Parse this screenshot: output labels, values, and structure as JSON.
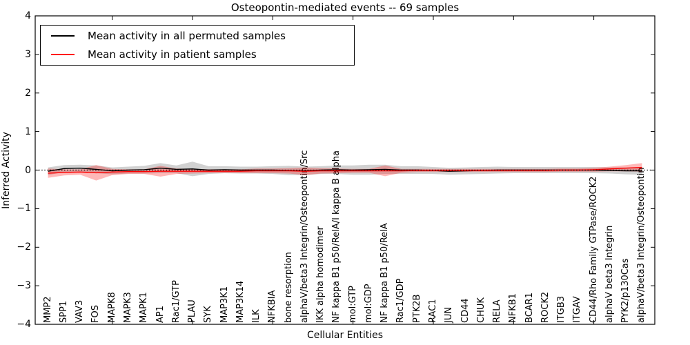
{
  "chart_data": {
    "type": "line",
    "title": "Osteopontin-mediated events -- 69 samples",
    "xlabel": "Cellular Entities",
    "ylabel": "Inferred Activity",
    "ylim": [
      -4,
      4
    ],
    "xlim": [
      0.2,
      38.8
    ],
    "y_ticks": [
      4,
      3,
      2,
      1,
      0,
      -1,
      -2,
      -3,
      -4
    ],
    "x_major_tick_entity_positions": [
      5,
      10,
      15,
      20,
      25,
      30,
      35
    ],
    "grid": false,
    "legend_position": "upper left",
    "zero_reference_line": {
      "y": 0,
      "style": "dotted",
      "color": "#000000"
    },
    "categories": [
      "MMP2",
      "SPP1",
      "VAV3",
      "FOS",
      "MAPK8",
      "MAPK3",
      "MAPK1",
      "AP1",
      "Rac1/GTP",
      "PLAU",
      "SYK",
      "MAP3K1",
      "MAP3K14",
      "ILK",
      "NFKBIA",
      "bone resorption",
      "alphaV/beta3 Integrin/Osteopontin/Src",
      "IKK alpha homodimer",
      "NF kappa B1 p50/RelA/I kappa B alpha",
      "mol:GTP",
      "mol:GDP",
      "NF kappa B1 p50/RelA",
      "Rac1/GDP",
      "PTK2B",
      "RAC1",
      "JUN",
      "CD44",
      "CHUK",
      "RELA",
      "NFKB1",
      "BCAR1",
      "ROCK2",
      "ITGB3",
      "ITGAV",
      "CD44/Rho Family GTPase/ROCK2",
      "alphaV beta3 Integrin",
      "PYK2/p130Cas",
      "alphaV/beta3 Integrin/Osteopontin"
    ],
    "series": [
      {
        "name": "Mean activity in all permuted samples",
        "color": "#000000",
        "band_fill": "rgba(0,0,0,0.18)",
        "mean": [
          -0.03,
          0.04,
          0.05,
          0.02,
          -0.02,
          0,
          0.01,
          0.05,
          0.02,
          0.03,
          0,
          0.01,
          0,
          0,
          0,
          -0.01,
          -0.02,
          0,
          0.01,
          0,
          0.01,
          0.02,
          0,
          0,
          -0.01,
          -0.03,
          -0.02,
          -0.01,
          0,
          0,
          0,
          0,
          0,
          0,
          0,
          -0.01,
          -0.02,
          -0.02
        ],
        "band_halfwidth": [
          0.1,
          0.09,
          0.09,
          0.1,
          0.09,
          0.09,
          0.1,
          0.13,
          0.1,
          0.19,
          0.1,
          0.09,
          0.09,
          0.09,
          0.1,
          0.12,
          0.11,
          0.1,
          0.11,
          0.12,
          0.13,
          0.12,
          0.1,
          0.1,
          0.09,
          0.09,
          0.09,
          0.09,
          0.09,
          0.08,
          0.08,
          0.08,
          0.08,
          0.08,
          0.08,
          0.08,
          0.09,
          0.1
        ]
      },
      {
        "name": "Mean activity in patient samples",
        "color": "#ff0000",
        "band_fill": "rgba(255,0,0,0.28)",
        "mean": [
          -0.08,
          -0.06,
          -0.05,
          -0.07,
          -0.05,
          -0.04,
          -0.04,
          -0.03,
          -0.03,
          -0.03,
          -0.03,
          -0.03,
          -0.03,
          -0.02,
          -0.02,
          -0.02,
          -0.03,
          -0.02,
          -0.02,
          -0.02,
          -0.02,
          -0.02,
          -0.02,
          -0.01,
          -0.01,
          -0.01,
          -0.01,
          -0.01,
          -0.01,
          -0.01,
          -0.01,
          -0.01,
          0,
          0,
          0.01,
          0.03,
          0.05,
          0.07
        ],
        "band_halfwidth": [
          0.12,
          0.08,
          0.07,
          0.2,
          0.08,
          0.06,
          0.06,
          0.14,
          0.07,
          0.06,
          0.05,
          0.05,
          0.05,
          0.06,
          0.06,
          0.07,
          0.1,
          0.07,
          0.06,
          0.05,
          0.05,
          0.14,
          0.05,
          0.04,
          0.04,
          0.04,
          0.04,
          0.04,
          0.04,
          0.04,
          0.04,
          0.04,
          0.04,
          0.04,
          0.05,
          0.06,
          0.08,
          0.11
        ]
      }
    ]
  }
}
